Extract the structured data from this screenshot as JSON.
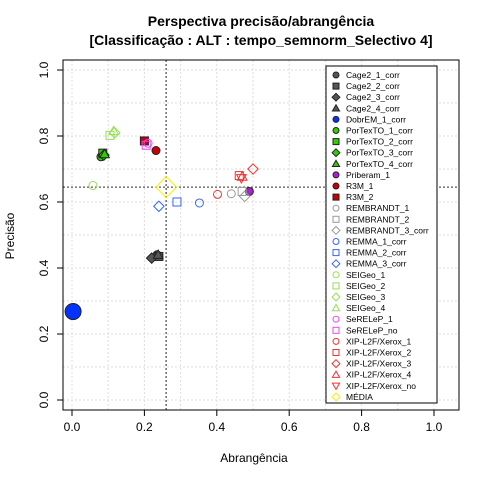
{
  "chart_data": {
    "type": "scatter",
    "title": "Perspectiva precisão/abrangência",
    "subtitle": "[Classificação : ALT : tempo_semnorm_Selectivo 4]",
    "xlabel": "Abrangência",
    "ylabel": "Precisão",
    "xlim": [
      0,
      1
    ],
    "ylim": [
      0,
      1
    ],
    "x_ticks": [
      "0.0",
      "0.2",
      "0.4",
      "0.6",
      "0.8",
      "1.0"
    ],
    "y_ticks": [
      "0.0",
      "0.2",
      "0.4",
      "0.6",
      "0.8",
      "1.0"
    ],
    "grid": true,
    "legend_position": "right",
    "reference_lines": {
      "x": 0.26,
      "y": 0.645
    },
    "series": [
      {
        "name": "Cage2_1_corr",
        "color": "#555555",
        "shape": "circle",
        "filled": true,
        "points": [
          [
            0.235,
            0.44
          ]
        ]
      },
      {
        "name": "Cage2_2_corr",
        "color": "#555555",
        "shape": "square",
        "filled": true,
        "points": [
          [
            0.24,
            0.435
          ]
        ]
      },
      {
        "name": "Cage2_3_corr",
        "color": "#555555",
        "shape": "diamond",
        "filled": true,
        "points": [
          [
            0.22,
            0.43
          ]
        ]
      },
      {
        "name": "Cage2_4_corr",
        "color": "#555555",
        "shape": "triangle",
        "filled": true,
        "points": [
          [
            0.238,
            0.44
          ]
        ]
      },
      {
        "name": "DobrEM_1_corr",
        "color": "#0033ff",
        "shape": "circle",
        "filled": true,
        "points": [
          [
            0.003,
            0.268
          ]
        ]
      },
      {
        "name": "PorTexTO_1_corr",
        "color": "#33cc00",
        "shape": "circle",
        "filled": true,
        "points": [
          [
            0.08,
            0.737
          ]
        ]
      },
      {
        "name": "PorTexTO_2_corr",
        "color": "#33cc00",
        "shape": "square",
        "filled": true,
        "points": [
          [
            0.085,
            0.748
          ]
        ]
      },
      {
        "name": "PorTexTO_3_corr",
        "color": "#33cc00",
        "shape": "diamond",
        "filled": true,
        "points": [
          [
            0.088,
            0.742
          ]
        ]
      },
      {
        "name": "PorTexTO_4_corr",
        "color": "#33cc00",
        "shape": "triangle",
        "filled": true,
        "points": [
          [
            0.09,
            0.745
          ]
        ]
      },
      {
        "name": "Priberam_1",
        "color": "#aa22cc",
        "shape": "circle",
        "filled": true,
        "points": [
          [
            0.49,
            0.632
          ]
        ]
      },
      {
        "name": "R3M_1",
        "color": "#cc0000",
        "shape": "circle",
        "filled": true,
        "points": [
          [
            0.232,
            0.756
          ]
        ]
      },
      {
        "name": "R3M_2",
        "color": "#cc0000",
        "shape": "square",
        "filled": true,
        "points": [
          [
            0.2,
            0.785
          ]
        ]
      },
      {
        "name": "REMBRANDT_1",
        "color": "#999999",
        "shape": "circle",
        "filled": false,
        "points": [
          [
            0.44,
            0.625
          ]
        ]
      },
      {
        "name": "REMBRANDT_2",
        "color": "#999999",
        "shape": "square",
        "filled": false,
        "points": [
          [
            0.47,
            0.632
          ]
        ]
      },
      {
        "name": "REMBRANDT_3_corr",
        "color": "#999999",
        "shape": "diamond",
        "filled": false,
        "points": [
          [
            0.477,
            0.617
          ]
        ]
      },
      {
        "name": "REMMA_1_corr",
        "color": "#3366ff",
        "shape": "circle",
        "filled": false,
        "points": [
          [
            0.352,
            0.597
          ]
        ]
      },
      {
        "name": "REMMA_2_corr",
        "color": "#3366ff",
        "shape": "square",
        "filled": false,
        "points": [
          [
            0.29,
            0.6
          ]
        ]
      },
      {
        "name": "REMMA_3_corr",
        "color": "#3366ff",
        "shape": "diamond",
        "filled": false,
        "points": [
          [
            0.24,
            0.587
          ]
        ]
      },
      {
        "name": "SEIGeo_1",
        "color": "#99dd55",
        "shape": "circle",
        "filled": false,
        "points": [
          [
            0.058,
            0.65
          ]
        ]
      },
      {
        "name": "SEIGeo_2",
        "color": "#99dd55",
        "shape": "square",
        "filled": false,
        "points": [
          [
            0.105,
            0.802
          ]
        ]
      },
      {
        "name": "SEIGeo_3",
        "color": "#99dd55",
        "shape": "diamond",
        "filled": false,
        "points": [
          [
            0.118,
            0.81
          ]
        ]
      },
      {
        "name": "SEIGeo_4",
        "color": "#99dd55",
        "shape": "triangle",
        "filled": false,
        "points": [
          [
            0.115,
            0.815
          ]
        ]
      },
      {
        "name": "SeRELeP_1",
        "color": "#ee44ee",
        "shape": "circle",
        "filled": false,
        "points": [
          [
            0.21,
            0.778
          ]
        ]
      },
      {
        "name": "SeRELeP_no",
        "color": "#ee44ee",
        "shape": "square",
        "filled": false,
        "points": [
          [
            0.205,
            0.772
          ]
        ]
      },
      {
        "name": "XIP-L2F/Xerox_1",
        "color": "#ee3333",
        "shape": "circle",
        "filled": false,
        "points": [
          [
            0.402,
            0.623
          ]
        ]
      },
      {
        "name": "XIP-L2F/Xerox_2",
        "color": "#ee3333",
        "shape": "square",
        "filled": false,
        "points": [
          [
            0.462,
            0.68
          ]
        ]
      },
      {
        "name": "XIP-L2F/Xerox_3",
        "color": "#ee3333",
        "shape": "diamond",
        "filled": false,
        "points": [
          [
            0.5,
            0.7
          ]
        ]
      },
      {
        "name": "XIP-L2F/Xerox_4",
        "color": "#ee3333",
        "shape": "triangle",
        "filled": false,
        "points": [
          [
            0.47,
            0.677
          ]
        ]
      },
      {
        "name": "XIP-L2F/Xerox_no",
        "color": "#ee3333",
        "shape": "triangle-down",
        "filled": false,
        "points": [
          [
            0.468,
            0.672
          ]
        ]
      },
      {
        "name": "MÉDIA",
        "color": "#ffee00",
        "shape": "diamond",
        "filled": false,
        "points": [
          [
            0.26,
            0.645
          ]
        ]
      }
    ]
  }
}
